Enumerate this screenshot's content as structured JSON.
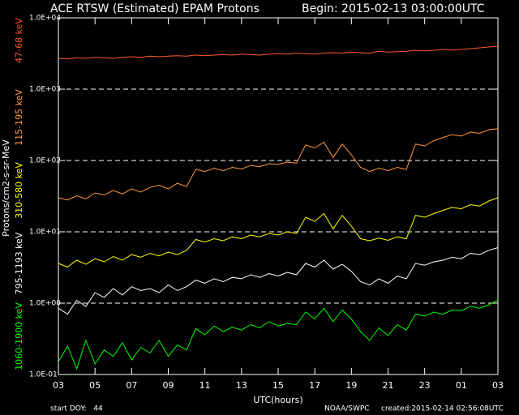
{
  "chart_data": {
    "type": "line",
    "title": "ACE RTSW (Estimated) EPAM Protons",
    "subtitle": "Begin: 2015-02-13 03:00:00UTC",
    "x_label": "UTC(hours)",
    "y_label": "Protons/cm2-s-sr-MeV",
    "footer_left": "start DOY:   44",
    "footer_center": "NOAA/SWPC",
    "footer_right": "created:2015-02-14 02:56:08UTC",
    "log_y": true,
    "grid": true,
    "xlim": [
      0,
      24
    ],
    "xticks": [
      {
        "value": 0,
        "label": "03"
      },
      {
        "value": 2,
        "label": "05"
      },
      {
        "value": 4,
        "label": "07"
      },
      {
        "value": 6,
        "label": "09"
      },
      {
        "value": 8,
        "label": "11"
      },
      {
        "value": 10,
        "label": "13"
      },
      {
        "value": 12,
        "label": "15"
      },
      {
        "value": 14,
        "label": "17"
      },
      {
        "value": 16,
        "label": "19"
      },
      {
        "value": 18,
        "label": "21"
      },
      {
        "value": 20,
        "label": "23"
      },
      {
        "value": 22,
        "label": "01"
      },
      {
        "value": 24,
        "label": "03"
      }
    ],
    "ylim": [
      0.1,
      10000
    ],
    "yticks": [
      {
        "value": 0.1,
        "label": "1.0E-01"
      },
      {
        "value": 1,
        "label": "1.0E+00"
      },
      {
        "value": 10,
        "label": "1.0E+01"
      },
      {
        "value": 100,
        "label": "1.0E+02"
      },
      {
        "value": 1000,
        "label": "1.0E+03"
      },
      {
        "value": 10000,
        "label": "1.0E+04"
      }
    ],
    "x": [
      0,
      0.5,
      1,
      1.5,
      2,
      2.5,
      3,
      3.5,
      4,
      4.5,
      5,
      5.5,
      6,
      6.5,
      7,
      7.5,
      8,
      8.5,
      9,
      9.5,
      10,
      10.5,
      11,
      11.5,
      12,
      12.5,
      13,
      13.5,
      14,
      14.5,
      15,
      15.5,
      16,
      16.5,
      17,
      17.5,
      18,
      18.5,
      19,
      19.5,
      20,
      20.5,
      21,
      21.5,
      22,
      22.5,
      23,
      23.5,
      24
    ],
    "series": [
      {
        "name": "47-68 keV",
        "color": "#ff5a28",
        "values": [
          2700,
          2650,
          2750,
          2700,
          2800,
          2750,
          2700,
          2800,
          2850,
          2800,
          2900,
          2850,
          2900,
          2950,
          2900,
          3000,
          2950,
          3000,
          3050,
          3000,
          3100,
          3050,
          3000,
          3100,
          3150,
          3100,
          3200,
          3150,
          3100,
          3200,
          3250,
          3200,
          3300,
          3250,
          3200,
          3400,
          3300,
          3350,
          3400,
          3500,
          3450,
          3500,
          3600,
          3550,
          3600,
          3700,
          3800,
          3900,
          4000
        ]
      },
      {
        "name": "115-195 keV",
        "color": "#ff9a3c",
        "values": [
          30,
          28,
          32,
          29,
          35,
          33,
          38,
          34,
          40,
          36,
          42,
          45,
          40,
          48,
          43,
          75,
          70,
          78,
          72,
          80,
          76,
          85,
          82,
          90,
          88,
          95,
          92,
          165,
          150,
          180,
          110,
          170,
          120,
          80,
          70,
          78,
          72,
          80,
          75,
          170,
          160,
          190,
          210,
          230,
          220,
          250,
          240,
          270,
          280
        ]
      },
      {
        "name": "310-580 keV",
        "color": "#ffff00",
        "values": [
          3.6,
          3.2,
          4,
          3.5,
          4.2,
          3.8,
          4.5,
          4,
          4.8,
          4.4,
          5,
          4.6,
          5.2,
          4.8,
          5.5,
          7.8,
          7.2,
          8,
          7.5,
          8.5,
          8,
          9,
          8.5,
          9.5,
          9,
          10,
          9.5,
          16,
          14,
          18,
          11,
          17,
          12,
          8,
          7.5,
          8.2,
          7.6,
          8.5,
          8,
          17,
          16,
          18,
          20,
          22,
          21,
          24,
          23,
          27,
          30
        ]
      },
      {
        "name": "795-1193 keV",
        "color": "#ffffff",
        "values": [
          0.85,
          0.7,
          1.1,
          0.9,
          1.4,
          1.2,
          1.6,
          1.3,
          1.7,
          1.5,
          1.6,
          1.4,
          1.8,
          1.5,
          1.7,
          2.1,
          1.9,
          2.2,
          2,
          2.3,
          2.2,
          2.5,
          2.3,
          2.6,
          2.4,
          2.7,
          2.5,
          3.6,
          3.2,
          4,
          3,
          3.5,
          2.8,
          2,
          1.8,
          2.2,
          1.9,
          2.4,
          2.2,
          3.6,
          3.4,
          3.8,
          4,
          4.4,
          4.2,
          5,
          4.8,
          5.5,
          6
        ]
      },
      {
        "name": "1060-1900 keV",
        "color": "#00ff00",
        "values": [
          0.15,
          0.25,
          0.12,
          0.3,
          0.14,
          0.22,
          0.18,
          0.28,
          0.16,
          0.24,
          0.2,
          0.3,
          0.18,
          0.26,
          0.22,
          0.44,
          0.36,
          0.48,
          0.4,
          0.46,
          0.42,
          0.5,
          0.45,
          0.55,
          0.48,
          0.52,
          0.5,
          0.75,
          0.6,
          0.85,
          0.55,
          0.8,
          0.6,
          0.4,
          0.3,
          0.45,
          0.35,
          0.5,
          0.42,
          0.7,
          0.66,
          0.75,
          0.7,
          0.8,
          0.78,
          0.9,
          0.85,
          0.95,
          1.1
        ]
      }
    ]
  }
}
